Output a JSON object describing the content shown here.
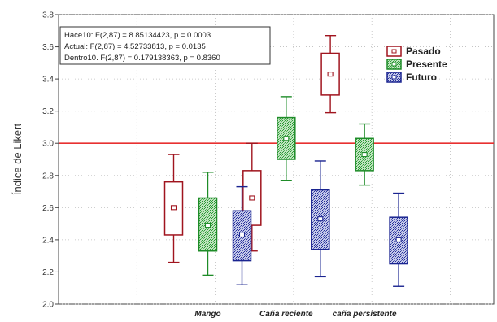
{
  "chart_data": {
    "type": "box",
    "ylabel": "Índice de Likert",
    "ylim": [
      2.0,
      3.8
    ],
    "y_ticks": [
      "2.0",
      "2.2",
      "2.4",
      "2.6",
      "2.8",
      "3.0",
      "3.2",
      "3.4",
      "3.6",
      "3.8"
    ],
    "grid": true,
    "reference_line": {
      "y": 3.0,
      "color": "#e83030"
    },
    "categories": [
      "Mango",
      "Caña reciente",
      "caña persistente"
    ],
    "legend": {
      "placement": "top-right"
    },
    "annotations": [
      "Hace10:  F(2,87) = 8.85134423, p = 0.0003",
      "Actual:  F(2,87) = 4.52733813, p = 0.0135",
      "Dentro10.  F(2,87) = 0.179138363, p = 0.8360"
    ],
    "series": [
      {
        "name": "Pasado",
        "color": "#a0141e",
        "fill": "#ffffff",
        "boxes": [
          {
            "mean": 2.6,
            "box_low": 2.43,
            "box_high": 2.76,
            "whisker_low": 2.26,
            "whisker_high": 2.93
          },
          {
            "mean": 2.66,
            "box_low": 2.49,
            "box_high": 2.83,
            "whisker_low": 2.33,
            "whisker_high": 3.0
          },
          {
            "mean": 3.43,
            "box_low": 3.3,
            "box_high": 3.56,
            "whisker_low": 3.19,
            "whisker_high": 3.67
          }
        ]
      },
      {
        "name": "Presente",
        "color": "#1e8c28",
        "fill": "#9fd49f",
        "boxes": [
          {
            "mean": 2.49,
            "box_low": 2.33,
            "box_high": 2.66,
            "whisker_low": 2.18,
            "whisker_high": 2.82
          },
          {
            "mean": 3.03,
            "box_low": 2.9,
            "box_high": 3.16,
            "whisker_low": 2.77,
            "whisker_high": 3.29
          },
          {
            "mean": 2.93,
            "box_low": 2.83,
            "box_high": 3.03,
            "whisker_low": 2.74,
            "whisker_high": 3.12
          }
        ]
      },
      {
        "name": "Futuro",
        "color": "#1a2490",
        "fill": "#a3acd8",
        "boxes": [
          {
            "mean": 2.43,
            "box_low": 2.27,
            "box_high": 2.58,
            "whisker_low": 2.12,
            "whisker_high": 2.73
          },
          {
            "mean": 2.53,
            "box_low": 2.34,
            "box_high": 2.71,
            "whisker_low": 2.17,
            "whisker_high": 2.89
          },
          {
            "mean": 2.4,
            "box_low": 2.25,
            "box_high": 2.54,
            "whisker_low": 2.11,
            "whisker_high": 2.69
          }
        ]
      }
    ]
  }
}
